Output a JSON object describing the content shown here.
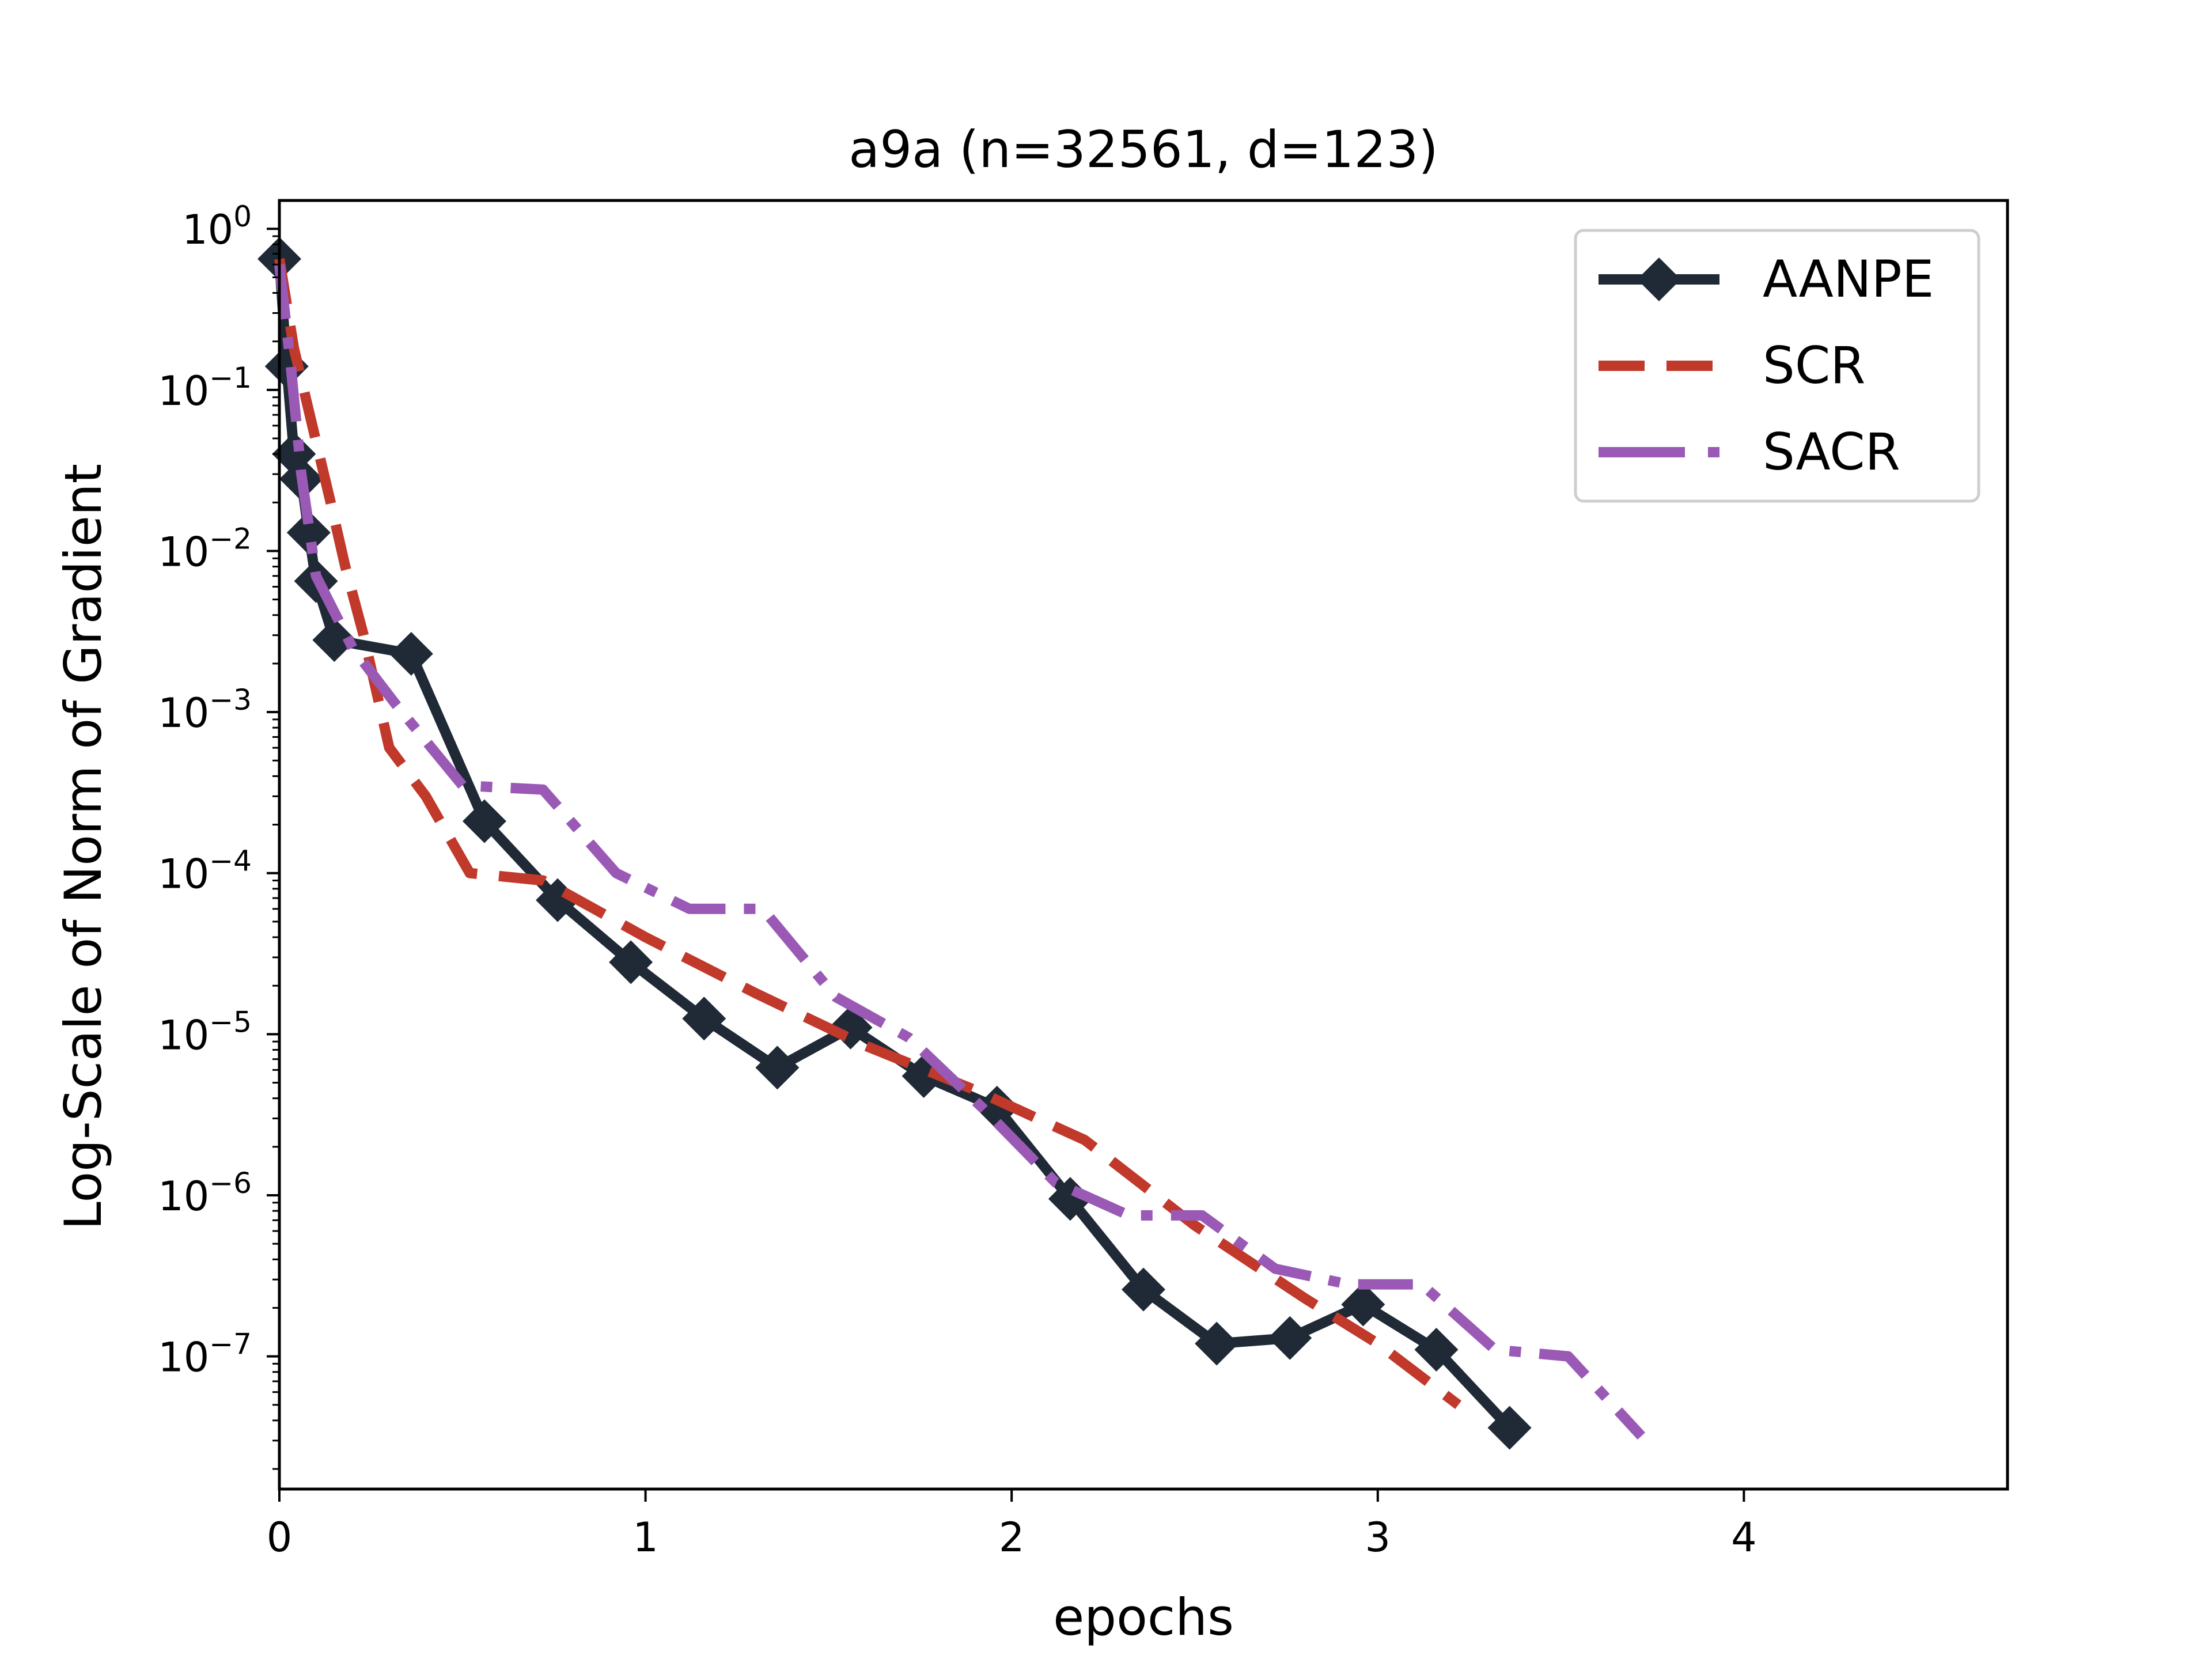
{
  "chart_data": {
    "type": "line",
    "title": "a9a (n=32561, d=123)",
    "xlabel": "epochs",
    "ylabel": "Log-Scale of Norm of Gradient",
    "xlim": [
      0,
      4.72
    ],
    "ylim": [
      1.5e-08,
      1.5
    ],
    "yscale": "log",
    "x_ticks": [
      {
        "value": 0,
        "label": "0"
      },
      {
        "value": 1,
        "label": "1"
      },
      {
        "value": 2,
        "label": "2"
      },
      {
        "value": 3,
        "label": "3"
      },
      {
        "value": 4,
        "label": "4"
      }
    ],
    "y_ticks": [
      {
        "exp": 0,
        "base": "10",
        "sup": "0"
      },
      {
        "exp": -1,
        "base": "10",
        "sup": "−1"
      },
      {
        "exp": -2,
        "base": "10",
        "sup": "−2"
      },
      {
        "exp": -3,
        "base": "10",
        "sup": "−3"
      },
      {
        "exp": -4,
        "base": "10",
        "sup": "−4"
      },
      {
        "exp": -5,
        "base": "10",
        "sup": "−5"
      },
      {
        "exp": -6,
        "base": "10",
        "sup": "−6"
      },
      {
        "exp": -7,
        "base": "10",
        "sup": "−7"
      }
    ],
    "legend_position": "top-right",
    "series": [
      {
        "name": "AANPE",
        "color": "#1f2a36",
        "style": "solid",
        "marker": "diamond",
        "x": [
          0.0,
          0.02,
          0.04,
          0.06,
          0.08,
          0.1,
          0.15,
          0.36,
          0.56,
          0.76,
          0.96,
          1.16,
          1.36,
          1.56,
          1.76,
          1.96,
          2.16,
          2.36,
          2.56,
          2.76,
          2.96,
          3.16,
          3.36
        ],
        "y": [
          0.65,
          0.14,
          0.04,
          0.028,
          0.013,
          0.0065,
          0.0028,
          0.0023,
          0.00021,
          6.8e-05,
          2.8e-05,
          1.25e-05,
          6.2e-06,
          1.1e-05,
          5.5e-06,
          3.5e-06,
          9.5e-07,
          2.6e-07,
          1.2e-07,
          1.3e-07,
          2.1e-07,
          1.1e-07,
          3.6e-08
        ]
      },
      {
        "name": "SCR",
        "color": "#c0392b",
        "style": "dashed",
        "marker": "none",
        "x": [
          0.0,
          0.04,
          0.09,
          0.14,
          0.18,
          0.23,
          0.3,
          0.4,
          0.52,
          0.72,
          1.0,
          1.3,
          1.6,
          1.9,
          2.2,
          2.5,
          2.8,
          3.0,
          3.22
        ],
        "y": [
          0.65,
          0.18,
          0.06,
          0.02,
          0.008,
          0.003,
          0.0006,
          0.0003,
          0.0001,
          9e-05,
          4e-05,
          1.8e-05,
          8.5e-06,
          4.5e-06,
          2.2e-06,
          6.5e-07,
          2.3e-07,
          1.2e-07,
          5e-08
        ]
      },
      {
        "name": "SACR",
        "color": "#9b59b6",
        "style": "dashdot",
        "marker": "none",
        "x": [
          0.0,
          0.03,
          0.06,
          0.1,
          0.2,
          0.32,
          0.5,
          0.72,
          0.92,
          1.12,
          1.32,
          1.52,
          1.72,
          1.92,
          2.12,
          2.32,
          2.52,
          2.72,
          2.92,
          3.12,
          3.32,
          3.52,
          3.72
        ],
        "y": [
          0.6,
          0.15,
          0.03,
          0.007,
          0.0025,
          0.0011,
          0.00035,
          0.00033,
          0.0001,
          6e-05,
          6e-05,
          1.7e-05,
          9.5e-06,
          3.5e-06,
          1.2e-06,
          7.5e-07,
          7.5e-07,
          3.5e-07,
          2.8e-07,
          2.8e-07,
          1.1e-07,
          1e-07,
          3.2e-08
        ]
      }
    ]
  }
}
